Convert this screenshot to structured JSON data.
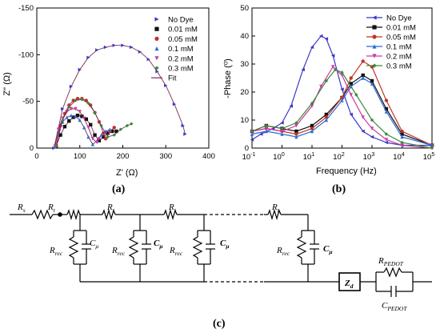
{
  "chart_data": [
    {
      "type": "scatter",
      "panel_caption": "(a)",
      "xlabel": "Z' (Ω)",
      "ylabel": "Z'' (Ω)",
      "xlim": [
        0,
        400
      ],
      "ylim": [
        0,
        -150
      ],
      "xticks": [
        "0",
        "100",
        "200",
        "300",
        "400"
      ],
      "yticks": [
        "-150",
        "-100",
        "-50",
        "0"
      ],
      "legend_position": "top-right",
      "series": [
        {
          "name": "No Dye",
          "color": "#3a38c4",
          "marker": "triangle-right",
          "x": [
            40,
            60,
            80,
            100,
            120,
            140,
            160,
            180,
            200,
            220,
            240,
            260,
            280,
            300,
            320,
            340,
            345
          ],
          "y": [
            0,
            -42,
            -66,
            -84,
            -97,
            -105,
            -108,
            -110,
            -110,
            -108,
            -103,
            -95,
            -82,
            -67,
            -47,
            -24,
            -15
          ]
        },
        {
          "name": "0.01 mM",
          "color": "#111111",
          "marker": "square",
          "x": [
            45,
            55,
            65,
            75,
            85,
            95,
            105,
            115,
            125,
            135,
            145,
            155,
            165,
            175,
            185
          ],
          "y": [
            -2,
            -14,
            -23,
            -29,
            -33,
            -35,
            -34,
            -31,
            -25,
            -14,
            -8,
            -12,
            -16,
            -18,
            -18
          ]
        },
        {
          "name": "0.05 mM",
          "color": "#c0342a",
          "marker": "circle",
          "x": [
            45,
            55,
            65,
            75,
            85,
            95,
            105,
            115,
            125,
            135,
            145,
            155,
            160,
            170,
            180
          ],
          "y": [
            -3,
            -24,
            -37,
            -46,
            -51,
            -53,
            -53,
            -51,
            -46,
            -38,
            -28,
            -16,
            -10,
            -18,
            -22
          ]
        },
        {
          "name": "0.1 mM",
          "color": "#2a6bd8",
          "marker": "triangle-up",
          "x": [
            42,
            50,
            60,
            70,
            80,
            90,
            100,
            110,
            120,
            130,
            140,
            150,
            160,
            170
          ],
          "y": [
            -2,
            -18,
            -28,
            -33,
            -35,
            -34,
            -30,
            -22,
            -12,
            -4,
            -8,
            -14,
            -18,
            -20
          ]
        },
        {
          "name": "0.2 mM",
          "color": "#c93aa3",
          "marker": "triangle-down",
          "x": [
            42,
            50,
            60,
            70,
            80,
            90,
            100,
            110,
            120,
            130,
            140,
            145
          ],
          "y": [
            -2,
            -20,
            -32,
            -39,
            -42,
            -42,
            -39,
            -32,
            -22,
            -10,
            -6,
            -10
          ]
        },
        {
          "name": "0.3 mM",
          "color": "#3c8a3a",
          "marker": "diamond",
          "x": [
            45,
            60,
            75,
            90,
            105,
            120,
            135,
            150,
            165,
            180,
            195,
            210,
            220
          ],
          "y": [
            -2,
            -30,
            -44,
            -51,
            -52,
            -48,
            -38,
            -24,
            -12,
            -14,
            -20,
            -24,
            -26
          ]
        },
        {
          "name": "Fit",
          "color": "#7a2a55",
          "line": true
        }
      ]
    },
    {
      "type": "line",
      "panel_caption": "(b)",
      "xlabel": "Frequency (Hz)",
      "ylabel": "-Phase (⁰)",
      "xscale": "log",
      "xlim": [
        0.1,
        100000
      ],
      "ylim": [
        0,
        50
      ],
      "xticks": [
        {
          "base": "10",
          "exp": "-1"
        },
        {
          "base": "10",
          "exp": "0"
        },
        {
          "base": "10",
          "exp": "1"
        },
        {
          "base": "10",
          "exp": "2"
        },
        {
          "base": "10",
          "exp": "3"
        },
        {
          "base": "10",
          "exp": "4"
        },
        {
          "base": "10",
          "exp": "5"
        }
      ],
      "yticks": [
        "0",
        "10",
        "20",
        "30",
        "40",
        "50"
      ],
      "legend_position": "top-right",
      "series": [
        {
          "name": "No Dye",
          "color": "#3a38c4",
          "marker": "triangle-left",
          "x": [
            0.1,
            0.2,
            0.5,
            1,
            2,
            5,
            10,
            20,
            30,
            50,
            100,
            200,
            500,
            1000,
            3000,
            10000,
            100000
          ],
          "y": [
            3,
            5,
            7,
            9,
            15,
            28,
            36,
            40,
            39,
            33,
            21,
            12,
            6,
            4,
            2,
            1,
            1
          ]
        },
        {
          "name": "0.01 mM",
          "color": "#111111",
          "marker": "square",
          "x": [
            0.1,
            0.3,
            1,
            3,
            10,
            30,
            100,
            200,
            500,
            1000,
            3000,
            10000,
            100000
          ],
          "y": [
            6,
            8,
            7,
            6,
            8,
            12,
            18,
            23,
            26,
            24,
            14,
            5,
            1
          ]
        },
        {
          "name": "0.05 mM",
          "color": "#c0342a",
          "marker": "circle",
          "x": [
            0.1,
            0.3,
            1,
            3,
            10,
            30,
            100,
            200,
            500,
            1000,
            3000,
            10000,
            100000
          ],
          "y": [
            6,
            7,
            6,
            5,
            7,
            11,
            18,
            25,
            31,
            29,
            17,
            6,
            1
          ]
        },
        {
          "name": "0.1 mM",
          "color": "#2a6bd8",
          "marker": "triangle-up",
          "x": [
            0.1,
            0.3,
            1,
            3,
            10,
            30,
            100,
            200,
            500,
            1000,
            3000,
            10000,
            100000
          ],
          "y": [
            5,
            6,
            5,
            4,
            6,
            10,
            17,
            22,
            25,
            23,
            13,
            4,
            1
          ]
        },
        {
          "name": "0.2 mM",
          "color": "#c93aa3",
          "marker": "triangle-down",
          "x": [
            0.1,
            0.3,
            1,
            3,
            10,
            20,
            50,
            100,
            200,
            500,
            1000,
            3000,
            10000,
            100000
          ],
          "y": [
            6,
            7,
            6,
            8,
            15,
            22,
            29,
            26,
            19,
            11,
            7,
            3,
            1,
            0
          ]
        },
        {
          "name": "0.3 mM",
          "color": "#3c8a3a",
          "marker": "diamond",
          "x": [
            0.1,
            0.3,
            1,
            3,
            10,
            30,
            60,
            100,
            300,
            1000,
            3000,
            10000,
            100000
          ],
          "y": [
            6,
            8,
            7,
            9,
            16,
            24,
            28,
            27,
            19,
            10,
            5,
            2,
            0
          ]
        }
      ]
    }
  ],
  "circuit": {
    "caption": "(c)",
    "labels": {
      "rs": "R",
      "rs_sub": "s",
      "rt": "R",
      "rt_sub": "t",
      "rrec": "R",
      "rrec_sub": "rec",
      "cmu": "C",
      "cmu_sub": "μ",
      "zd": "Z",
      "zd_sub": "d",
      "rpedot": "R",
      "rpedot_sub": "PEDOT",
      "cpedot": "C",
      "cpedot_sub": "PEDOT"
    }
  }
}
